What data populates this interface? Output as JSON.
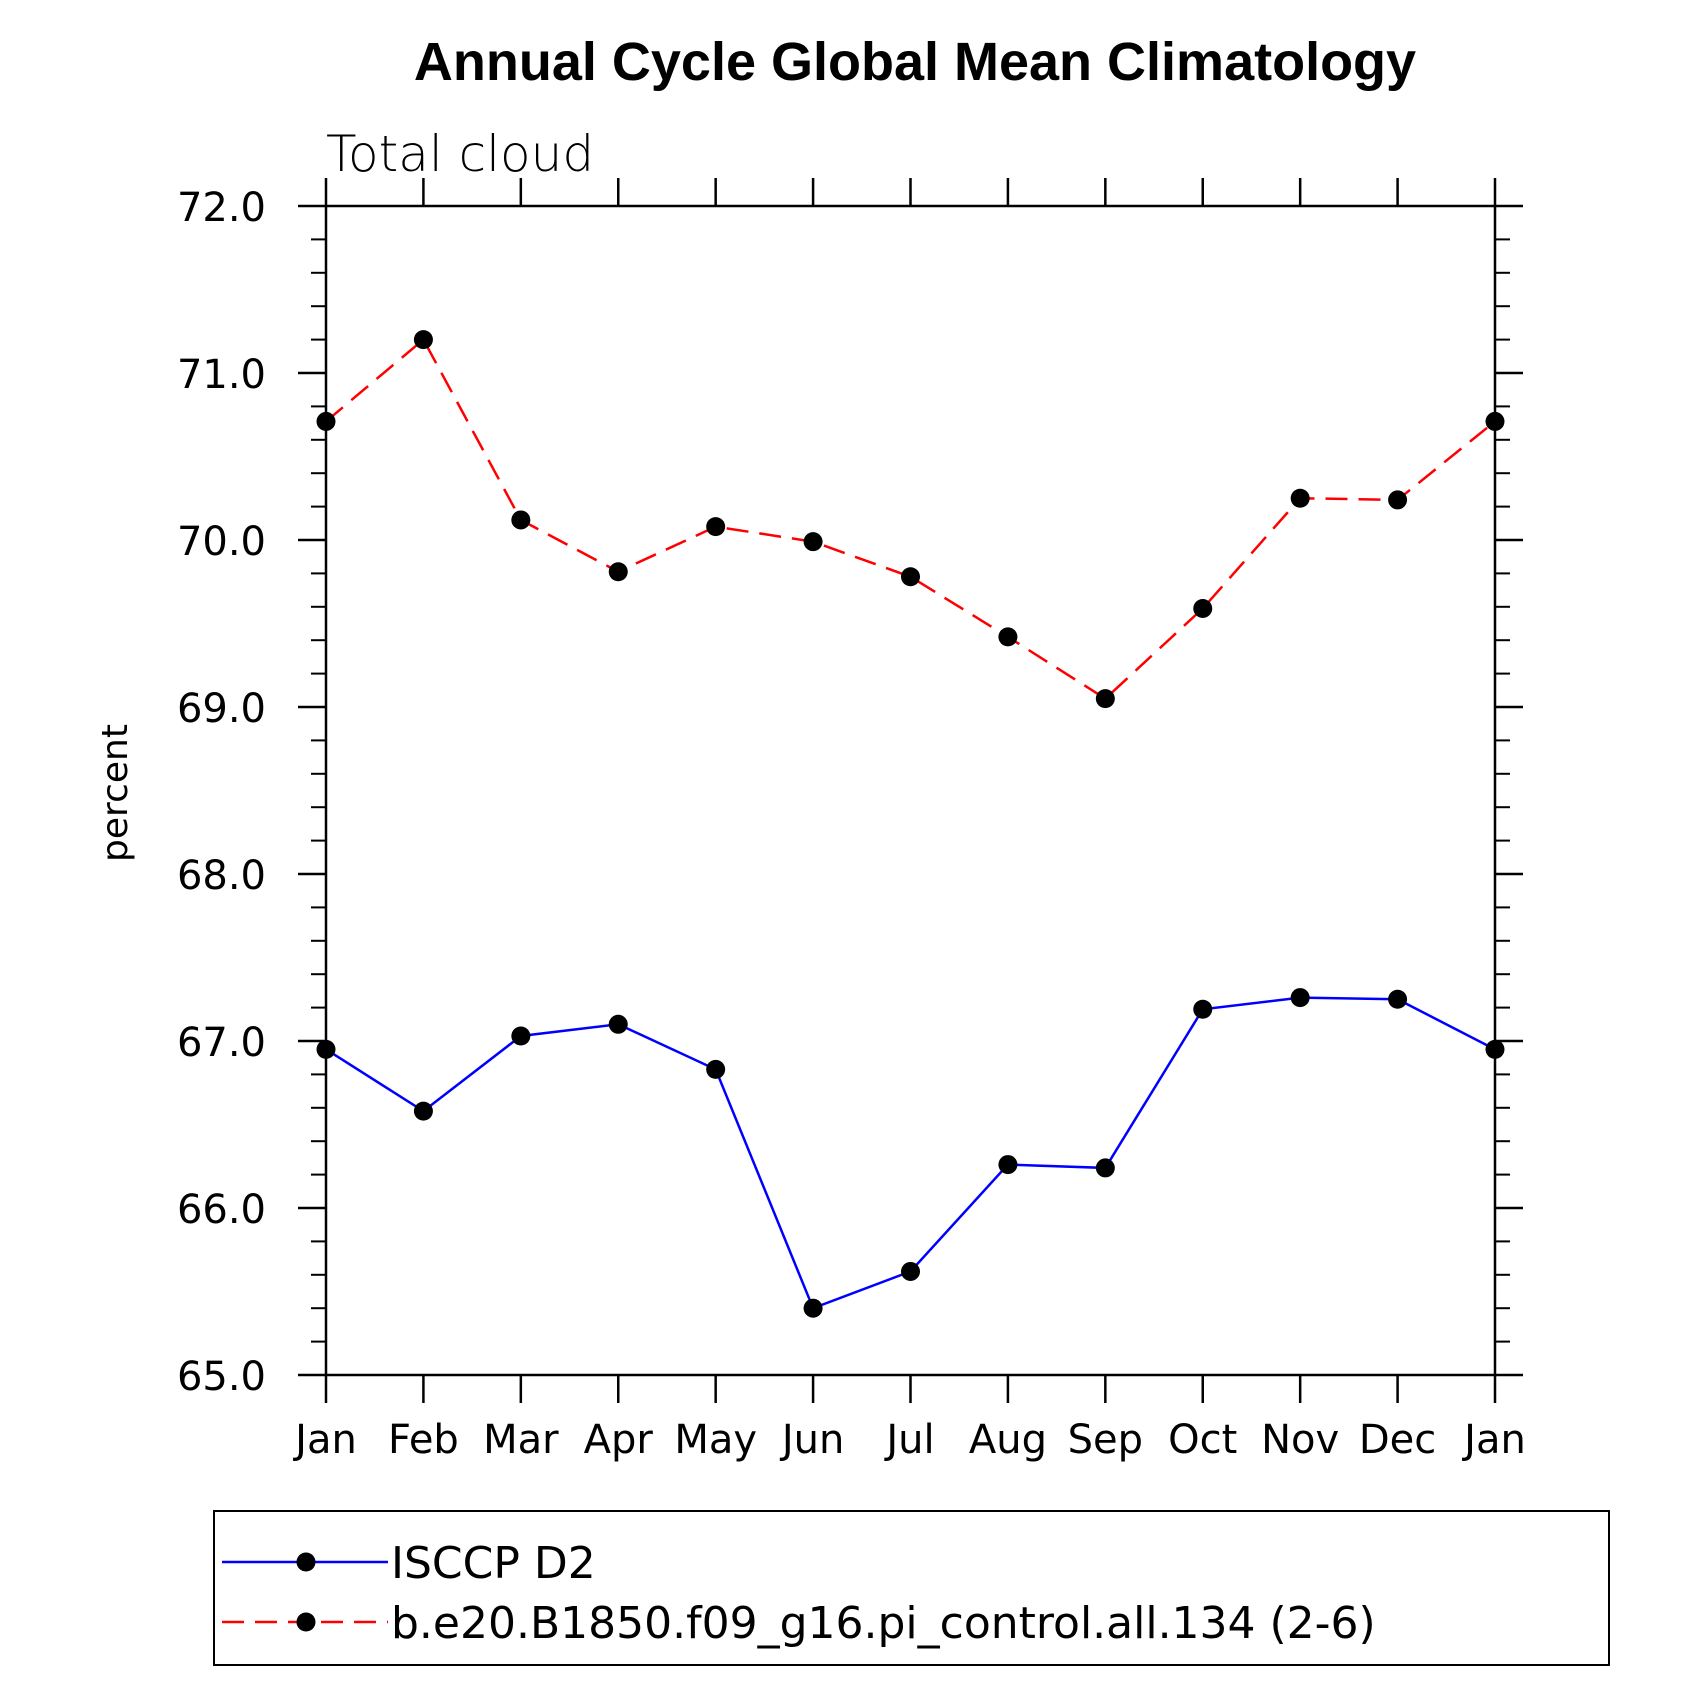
{
  "chart_data": {
    "type": "line",
    "title": "Annual Cycle Global Mean Climatology",
    "subtitle": "Total cloud",
    "xlabel": "",
    "ylabel": "percent",
    "categories": [
      "Jan",
      "Feb",
      "Mar",
      "Apr",
      "May",
      "Jun",
      "Jul",
      "Aug",
      "Sep",
      "Oct",
      "Nov",
      "Dec",
      "Jan"
    ],
    "ylim": [
      65.0,
      72.0
    ],
    "yticks": [
      "65.0",
      "66.0",
      "67.0",
      "68.0",
      "69.0",
      "70.0",
      "71.0",
      "72.0"
    ],
    "grid": false,
    "legend_position": "bottom",
    "series": [
      {
        "name": "ISCCP D2",
        "color": "#0000ff",
        "line_style": "solid",
        "marker": "filled-circle",
        "values": [
          66.95,
          66.58,
          67.03,
          67.1,
          66.83,
          65.4,
          65.62,
          66.26,
          66.24,
          67.19,
          67.26,
          67.25,
          66.95
        ]
      },
      {
        "name": "b.e20.B1850.f09_g16.pi_control.all.134 (2-6)",
        "color": "#ff0000",
        "line_style": "dashed",
        "marker": "filled-circle",
        "values": [
          70.71,
          71.2,
          70.12,
          69.81,
          70.08,
          69.99,
          69.78,
          69.42,
          69.05,
          69.59,
          70.25,
          70.24,
          70.71
        ]
      }
    ]
  }
}
